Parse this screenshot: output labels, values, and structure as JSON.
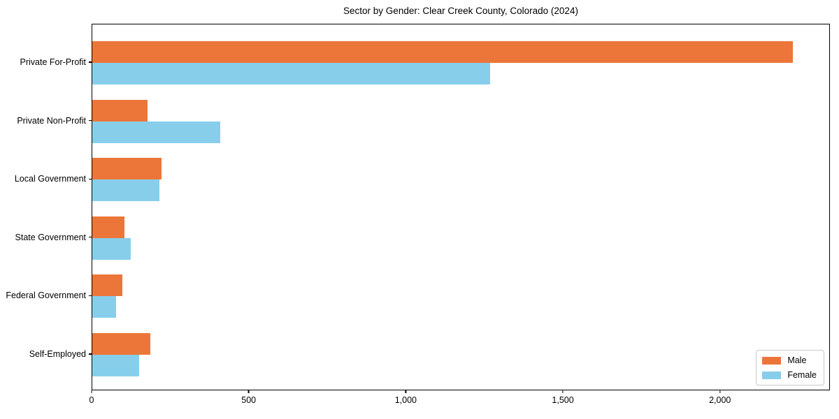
{
  "chart_data": {
    "type": "bar",
    "orientation": "horizontal",
    "title": "Sector by Gender: Clear Creek County, Colorado (2024)",
    "categories": [
      "Private For-Profit",
      "Private Non-Profit",
      "Local Government",
      "State Government",
      "Federal Government",
      "Self-Employed"
    ],
    "series": [
      {
        "name": "Male",
        "color": "#EC7639",
        "values": [
          2235,
          176,
          221,
          102,
          96,
          185
        ]
      },
      {
        "name": "Female",
        "color": "#87CEEB",
        "values": [
          1268,
          408,
          213,
          122,
          75,
          150
        ]
      }
    ],
    "xlabel": "",
    "ylabel": "",
    "xlim": [
      0,
      2350
    ],
    "xticks": [
      {
        "value": 0,
        "label": "0"
      },
      {
        "value": 500,
        "label": "500"
      },
      {
        "value": 1000,
        "label": "1,000"
      },
      {
        "value": 1500,
        "label": "1,500"
      },
      {
        "value": 2000,
        "label": "2,000"
      }
    ],
    "grid": false,
    "legend": {
      "position": "lower-right",
      "entries": [
        "Male",
        "Female"
      ]
    },
    "axis_color": "#000000",
    "text_color": "#000000",
    "background_color": "#ffffff"
  }
}
